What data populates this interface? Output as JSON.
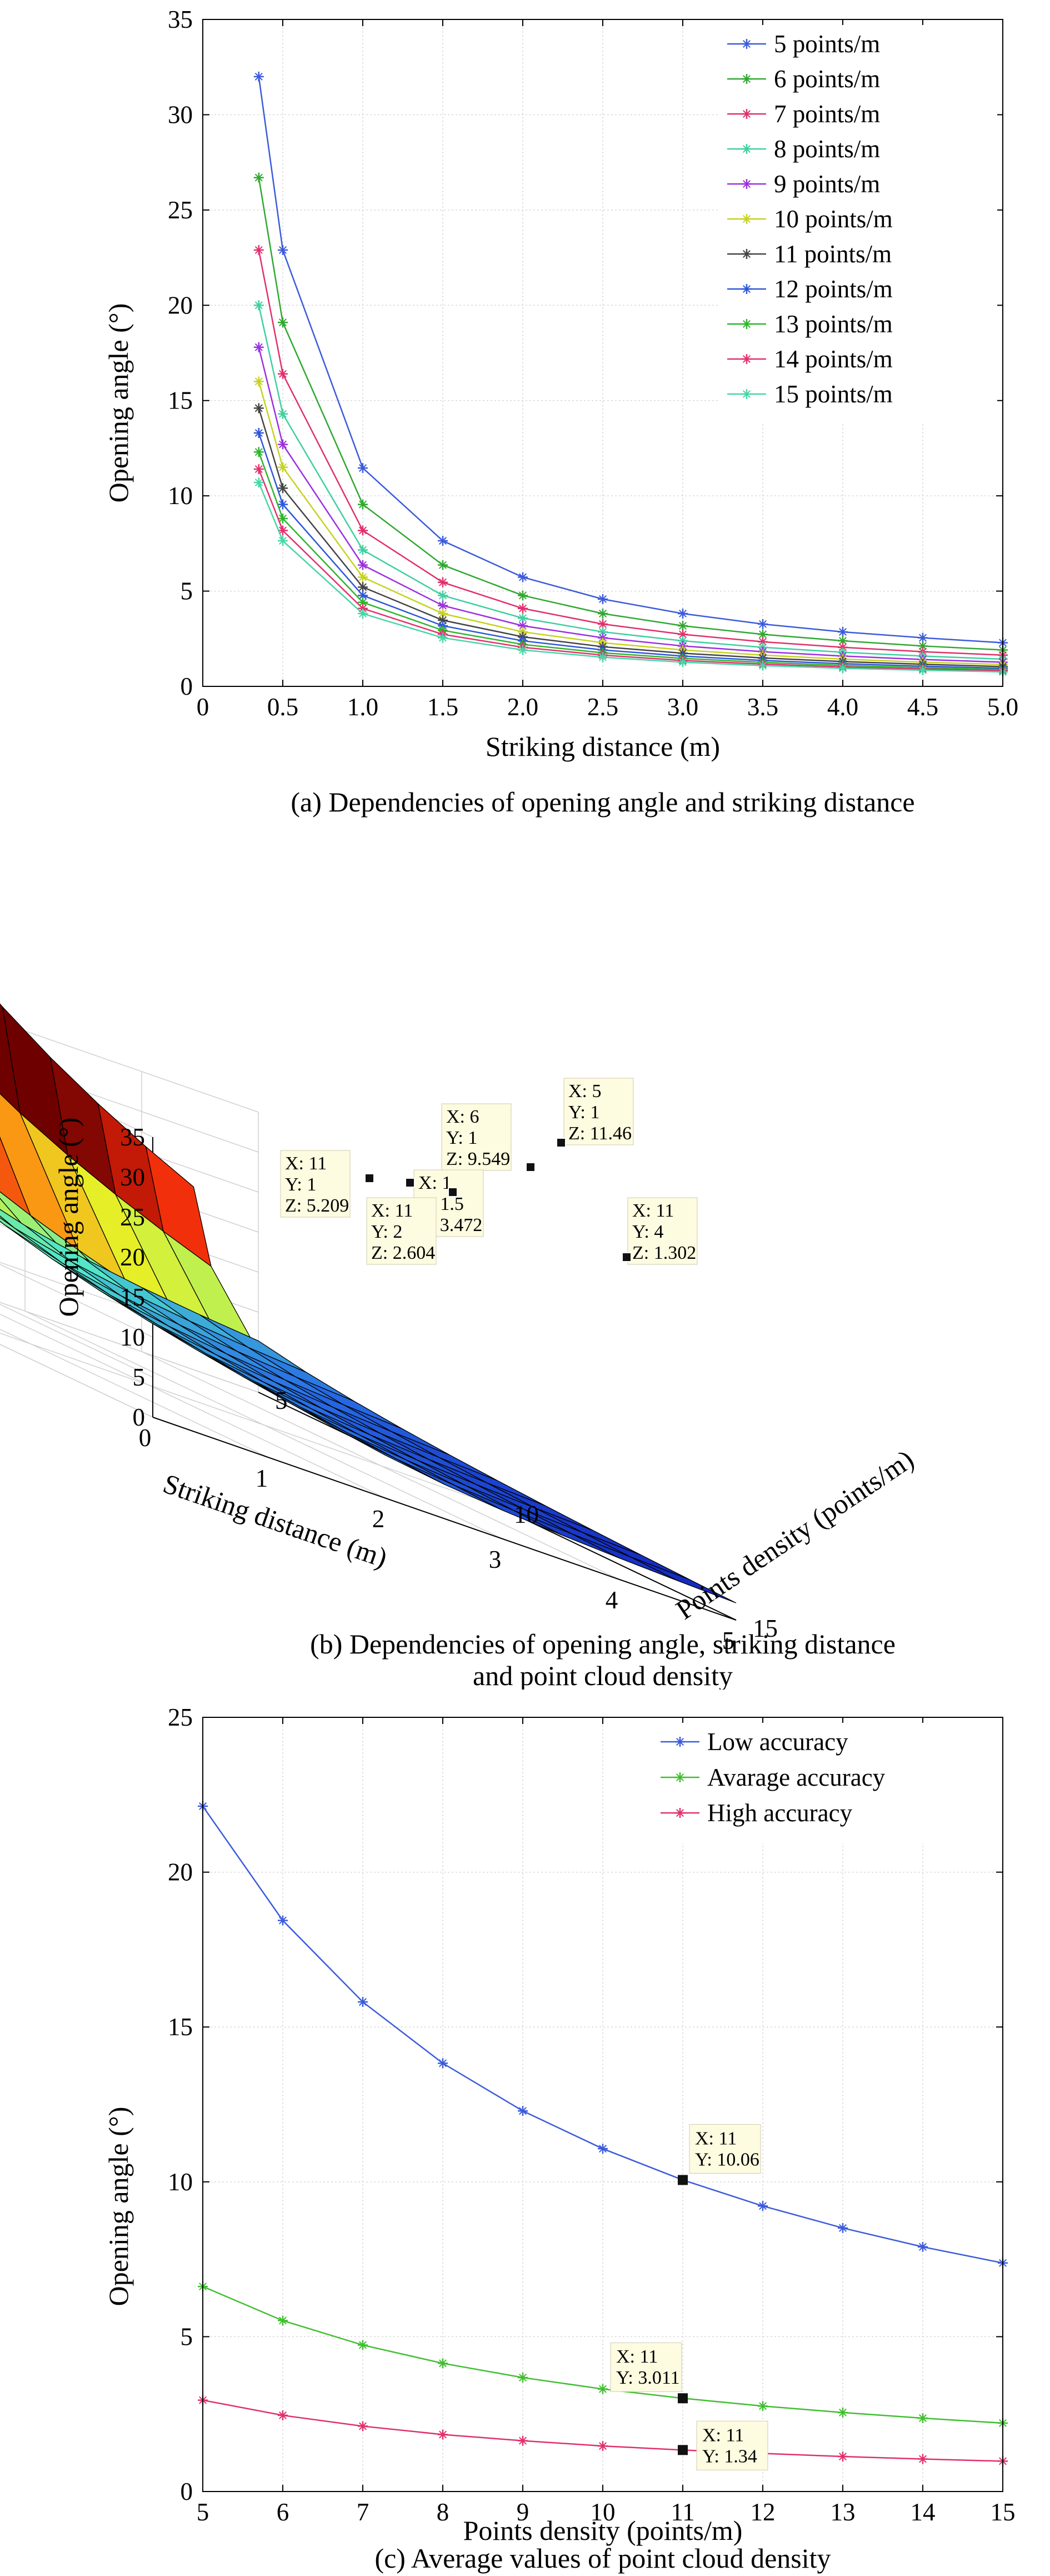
{
  "charts": [
    {
      "id": "a",
      "type": "line",
      "caption": "(a) Dependencies of opening angle and striking distance",
      "xlabel": "Striking distance (m)",
      "ylabel": "Opening angle (°)",
      "xlim": [
        0,
        5
      ],
      "ylim": [
        0,
        35
      ],
      "xticks": [
        "0",
        "0.5",
        "1.0",
        "1.5",
        "2.0",
        "2.5",
        "3.0",
        "3.5",
        "4.0",
        "4.5",
        "5.0"
      ],
      "xtick_values": [
        0,
        0.5,
        1,
        1.5,
        2,
        2.5,
        3,
        3.5,
        4,
        4.5,
        5
      ],
      "yticks": [
        "0",
        "5",
        "10",
        "15",
        "20",
        "25",
        "30",
        "35"
      ],
      "ytick_values": [
        0,
        5,
        10,
        15,
        20,
        25,
        30,
        35
      ],
      "legend_position": "top-right",
      "grid": true,
      "x": [
        0.35,
        0.5,
        1.0,
        1.5,
        2.0,
        2.5,
        3.0,
        3.5,
        4.0,
        4.5,
        5.0
      ],
      "series": [
        {
          "name": "5 points/m",
          "color": "#3b5bdb",
          "values": [
            32.0,
            22.9,
            11.46,
            7.64,
            5.73,
            4.58,
            3.82,
            3.27,
            2.86,
            2.55,
            2.29
          ]
        },
        {
          "name": "6 points/m",
          "color": "#2fa82f",
          "values": [
            26.7,
            19.1,
            9.55,
            6.37,
            4.77,
            3.82,
            3.18,
            2.73,
            2.39,
            2.12,
            1.91
          ]
        },
        {
          "name": "7 points/m",
          "color": "#e0306a",
          "values": [
            22.9,
            16.4,
            8.18,
            5.46,
            4.09,
            3.27,
            2.73,
            2.34,
            2.05,
            1.82,
            1.64
          ]
        },
        {
          "name": "8 points/m",
          "color": "#3ecfa0",
          "values": [
            20.0,
            14.3,
            7.16,
            4.77,
            3.58,
            2.86,
            2.39,
            2.05,
            1.79,
            1.59,
            1.43
          ]
        },
        {
          "name": "9 points/m",
          "color": "#9b30e0",
          "values": [
            17.8,
            12.7,
            6.37,
            4.24,
            3.18,
            2.55,
            2.12,
            1.82,
            1.59,
            1.41,
            1.27
          ]
        },
        {
          "name": "10 points/m",
          "color": "#c6d21f",
          "values": [
            16.0,
            11.5,
            5.73,
            3.82,
            2.86,
            2.29,
            1.91,
            1.64,
            1.43,
            1.27,
            1.15
          ]
        },
        {
          "name": "11 points/m",
          "color": "#444444",
          "values": [
            14.6,
            10.4,
            5.21,
            3.47,
            2.6,
            2.08,
            1.74,
            1.49,
            1.3,
            1.16,
            1.04
          ]
        },
        {
          "name": "12 points/m",
          "color": "#2f56d8",
          "values": [
            13.3,
            9.55,
            4.77,
            3.18,
            2.39,
            1.91,
            1.59,
            1.36,
            1.19,
            1.06,
            0.95
          ]
        },
        {
          "name": "13 points/m",
          "color": "#2db52d",
          "values": [
            12.3,
            8.81,
            4.41,
            2.94,
            2.2,
            1.76,
            1.47,
            1.26,
            1.1,
            0.98,
            0.88
          ]
        },
        {
          "name": "14 points/m",
          "color": "#e4306f",
          "values": [
            11.4,
            8.18,
            4.09,
            2.73,
            2.05,
            1.64,
            1.36,
            1.17,
            1.02,
            0.91,
            0.82
          ]
        },
        {
          "name": "15 points/m",
          "color": "#47d6a6",
          "values": [
            10.7,
            7.64,
            3.82,
            2.55,
            1.91,
            1.53,
            1.27,
            1.09,
            0.95,
            0.85,
            0.76
          ]
        }
      ]
    },
    {
      "id": "b",
      "type": "surface",
      "caption_line1": "(b) Dependencies of opening angle, striking distance",
      "caption_line2": "and point cloud density",
      "xlabel": "Striking distance (m)",
      "ylabel": "Points density (points/m)",
      "zlabel": "Opening angle (°)",
      "xticks": [
        "0",
        "1",
        "2",
        "3",
        "4",
        "5"
      ],
      "xtick_values": [
        0,
        1,
        2,
        3,
        4,
        5
      ],
      "yticks": [
        "5",
        "10",
        "15"
      ],
      "ytick_values": [
        5,
        10,
        15
      ],
      "zticks": [
        "0",
        "5",
        "10",
        "15",
        "20",
        "25",
        "30",
        "35"
      ],
      "ztick_values": [
        0,
        5,
        10,
        15,
        20,
        25,
        30,
        35
      ],
      "xlim": [
        0,
        5
      ],
      "ylim": [
        5,
        15
      ],
      "zlim": [
        0,
        35
      ],
      "grid_x": [
        0.35,
        0.5,
        1.0,
        1.5,
        2.0,
        2.5,
        3.0,
        3.5,
        4.0,
        4.5,
        5.0
      ],
      "grid_y": [
        5,
        6,
        7,
        8,
        9,
        10,
        11,
        12,
        13,
        14,
        15
      ],
      "datatips": [
        {
          "x": "5",
          "y": "1",
          "z": "11.46"
        },
        {
          "x": "6",
          "y": "1",
          "z": "9.549"
        },
        {
          "x": "11",
          "y": "1",
          "z": "5.209"
        },
        {
          "x": "1",
          "y": "1.5",
          "z": "3.472"
        },
        {
          "x": "11",
          "y": "2",
          "z": "2.604"
        },
        {
          "x": "11",
          "y": "4",
          "z": "1.302"
        }
      ],
      "tip_labels": {
        "x": "X",
        "y": "Y",
        "z": "Z"
      }
    },
    {
      "id": "c",
      "type": "line",
      "caption": "(c) Average values of point cloud density",
      "xlabel": "Points density (points/m)",
      "ylabel": "Opening angle (°)",
      "xlim": [
        5,
        15
      ],
      "ylim": [
        0,
        25
      ],
      "xticks": [
        "5",
        "6",
        "7",
        "8",
        "9",
        "10",
        "11",
        "12",
        "13",
        "14",
        "15"
      ],
      "xtick_values": [
        5,
        6,
        7,
        8,
        9,
        10,
        11,
        12,
        13,
        14,
        15
      ],
      "yticks": [
        "0",
        "5",
        "10",
        "15",
        "20",
        "25"
      ],
      "ytick_values": [
        0,
        5,
        10,
        15,
        20,
        25
      ],
      "legend_position": "top-right",
      "grid": true,
      "x": [
        5,
        6,
        7,
        8,
        9,
        10,
        11,
        12,
        13,
        14,
        15
      ],
      "series": [
        {
          "name": "Low accuracy",
          "color": "#3b5bdb",
          "values": [
            22.13,
            18.44,
            15.81,
            13.83,
            12.29,
            11.07,
            10.06,
            9.22,
            8.51,
            7.9,
            7.38
          ]
        },
        {
          "name": "Avarage accuracy",
          "color": "#3fbf2f",
          "values": [
            6.62,
            5.52,
            4.73,
            4.14,
            3.68,
            3.31,
            3.011,
            2.76,
            2.55,
            2.37,
            2.21
          ]
        },
        {
          "name": "High accuracy",
          "color": "#e0306a",
          "values": [
            2.95,
            2.46,
            2.11,
            1.84,
            1.64,
            1.47,
            1.34,
            1.23,
            1.13,
            1.05,
            0.98
          ]
        }
      ],
      "datatips": [
        {
          "x": "11",
          "y": "10.06",
          "xv": 11,
          "yv": 10.06
        },
        {
          "x": "11",
          "y": "3.011",
          "xv": 11,
          "yv": 3.011
        },
        {
          "x": "11",
          "y": "1.34",
          "xv": 11,
          "yv": 1.34
        }
      ],
      "tip_labels": {
        "x": "X",
        "y": "Y"
      }
    }
  ]
}
